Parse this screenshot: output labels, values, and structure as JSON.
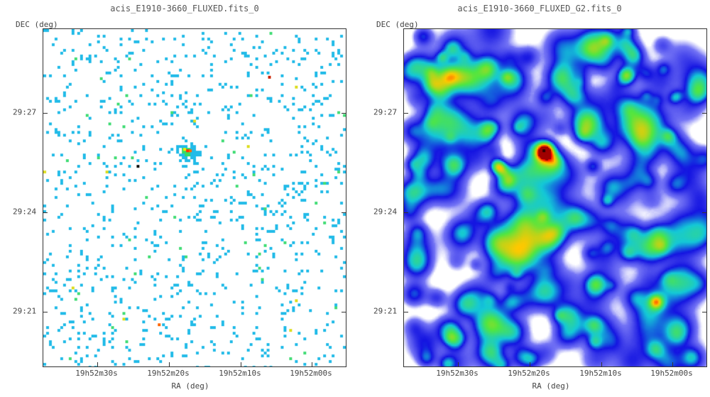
{
  "panels": [
    {
      "title": "acis_E1910-3660_FLUXED.fits_0",
      "ylabel": "DEC (deg)",
      "xlabel": "RA (deg)",
      "yticks": [
        "29:27",
        "29:24",
        "29:21"
      ],
      "xticks": [
        "19h52m30s",
        "19h52m20s",
        "19h52m10s",
        "19h52m00s"
      ],
      "colormap": "sparse-counts",
      "colors": {
        "background": "#ffffff",
        "low": "#22bbe8",
        "mid": "#33dd66",
        "high": "#ff3300"
      }
    },
    {
      "title": "acis_E1910-3660_FLUXED_G2.fits_0",
      "ylabel": "DEC (deg)",
      "xlabel": "RA (deg)",
      "yticks": [
        "29:27",
        "29:24",
        "29:21"
      ],
      "xticks": [
        "19h52m30s",
        "19h52m20s",
        "19h52m10s",
        "19h52m00s"
      ],
      "colormap": "smoothed-blue",
      "colors": {
        "background": "#ffffff",
        "low": "#1a1aee",
        "mid": "#00ccdd",
        "high": "#cc0000"
      }
    }
  ]
}
